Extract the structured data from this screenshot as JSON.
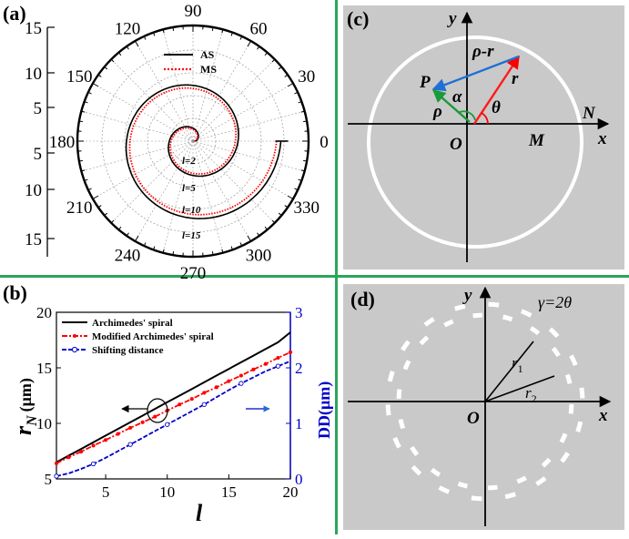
{
  "figure": {
    "divider_color": "#2ca55a",
    "panel_gray": "#c9c9c9"
  },
  "panel_a": {
    "label": "(a)",
    "angle_ticks": [
      "90",
      "60",
      "30",
      "0",
      "330",
      "300",
      "270",
      "240",
      "210",
      "180",
      "150",
      "120"
    ],
    "radial_ticks": [
      "15",
      "10",
      "5",
      "5",
      "10",
      "15"
    ],
    "legend": [
      {
        "label": "AS",
        "color": "#000000",
        "style": "solid"
      },
      {
        "label": "MS",
        "color": "#ff0000",
        "style": "dotted"
      }
    ],
    "curve_labels": [
      "l=2",
      "l=5",
      "l=10",
      "l=15"
    ]
  },
  "panel_b": {
    "label": "(b)",
    "chart_data": {
      "type": "line",
      "x": [
        1,
        2,
        3,
        4,
        5,
        6,
        7,
        8,
        9,
        10,
        11,
        12,
        13,
        14,
        15,
        16,
        17,
        18,
        19,
        20
      ],
      "series": [
        {
          "name": "Archimedes' spiral",
          "axis": "left",
          "color": "#000000",
          "style": "solid",
          "values": [
            6.5,
            7.1,
            7.7,
            8.3,
            8.9,
            9.5,
            10.1,
            10.7,
            11.3,
            11.9,
            12.5,
            13.1,
            13.7,
            14.3,
            14.9,
            15.5,
            16.1,
            16.7,
            17.3,
            18.2
          ]
        },
        {
          "name": "Modified Archimedes' spiral",
          "axis": "left",
          "color": "#ff0000",
          "style": "dash-dot",
          "values": [
            6.4,
            6.95,
            7.45,
            8.0,
            8.5,
            9.05,
            9.6,
            10.1,
            10.6,
            11.15,
            11.7,
            12.2,
            12.75,
            13.25,
            13.8,
            14.3,
            14.85,
            15.35,
            15.9,
            16.4
          ]
        },
        {
          "name": "Shifting distance",
          "axis": "right",
          "color": "#0000cc",
          "style": "dashed-circle",
          "values": [
            0.05,
            0.1,
            0.18,
            0.27,
            0.38,
            0.5,
            0.62,
            0.74,
            0.86,
            0.98,
            1.1,
            1.22,
            1.34,
            1.47,
            1.6,
            1.72,
            1.83,
            1.94,
            2.03,
            2.12
          ]
        }
      ],
      "xlabel": "l",
      "ylabel": "rN (μm)",
      "ylabel_main": "r",
      "ylabel_sub": "N",
      "ylabel_unit": "(μm)",
      "y2label": "DD(μm)",
      "xlim": [
        1,
        20
      ],
      "ylim": [
        5,
        20
      ],
      "y2lim": [
        0,
        3
      ],
      "xticks": [
        "5",
        "10",
        "15",
        "20"
      ],
      "yticks": [
        "5",
        "10",
        "15",
        "20"
      ],
      "y2ticks": [
        "0",
        "1",
        "2",
        "3"
      ],
      "legend_position": "top-left",
      "grid": false
    }
  },
  "panel_c": {
    "label": "(c)",
    "labels": {
      "y": "y",
      "x": "x",
      "O": "O",
      "M": "M",
      "N": "N",
      "P": "P",
      "rho_minus_r": "ρ-r",
      "r": "r",
      "rho": "ρ",
      "alpha": "α",
      "theta": "θ"
    }
  },
  "panel_d": {
    "label": "(d)",
    "gamma_text": "γ=2θ",
    "labels": {
      "y": "y",
      "x": "x",
      "O": "O",
      "r1": "r",
      "r1_sub": "1",
      "r2": "r",
      "r2_sub": "2"
    }
  }
}
